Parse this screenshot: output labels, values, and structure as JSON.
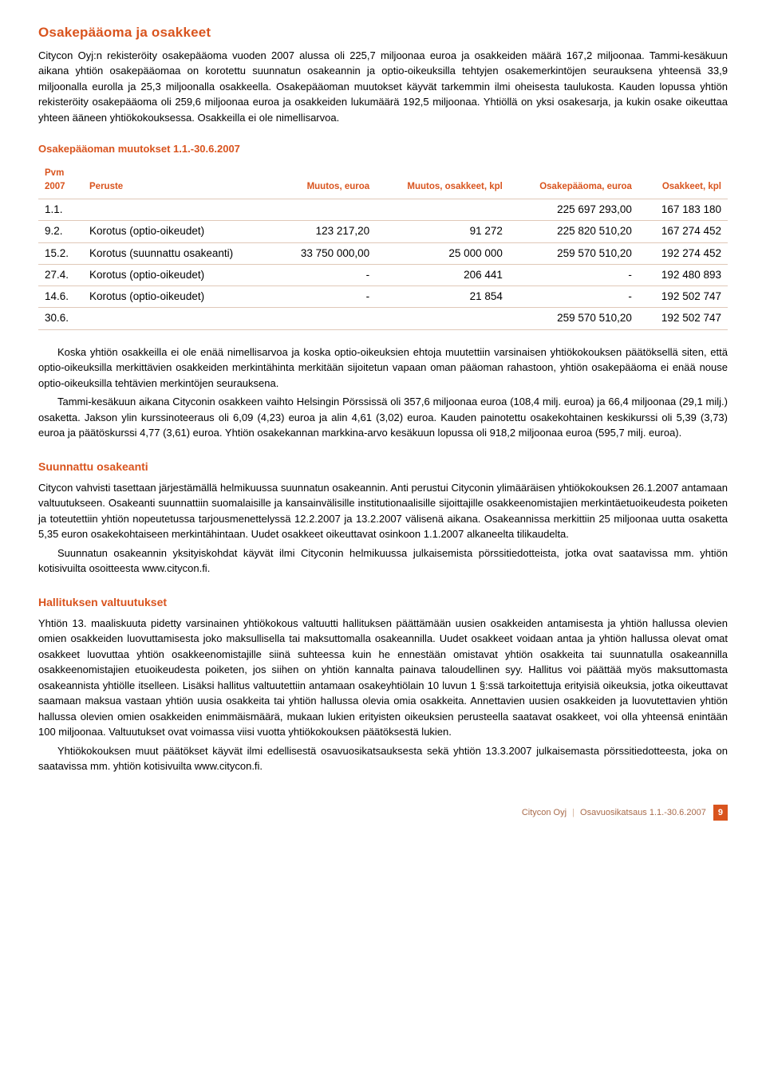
{
  "colors": {
    "accent": "#d9541e",
    "rule": "#e0c8b8",
    "footer_text": "#a86a4a"
  },
  "section1": {
    "title": "Osakepääoma ja osakkeet",
    "para": "Citycon Oyj:n rekisteröity osakepääoma vuoden 2007 alussa oli 225,7 miljoonaa euroa ja osakkeiden määrä 167,2 miljoonaa. Tammi-kesäkuun aikana yhtiön osakepääomaa on korotettu suunnatun osakeannin ja optio-oikeuksilla tehtyjen osakemerkintöjen seurauksena yhteensä 33,9 miljoonalla eurolla ja 25,3 miljoonalla osakkeella. Osakepääoman muutokset käyvät tarkemmin ilmi oheisesta taulukosta. Kauden lopussa yhtiön rekisteröity osakepääoma oli 259,6 miljoonaa euroa ja osakkeiden lukumäärä 192,5 miljoonaa. Yhtiöllä on yksi osakesarja, ja kukin osake oikeuttaa yhteen ääneen yhtiökokouksessa. Osakkeilla ei ole nimellisarvoa."
  },
  "table": {
    "title": "Osakepääoman muutokset 1.1.-30.6.2007",
    "columns": [
      "Pvm 2007",
      "Peruste",
      "Muutos, euroa",
      "Muutos, osakkeet, kpl",
      "Osakepääoma, euroa",
      "Osakkeet, kpl"
    ],
    "rows": [
      [
        "1.1.",
        "",
        "",
        "",
        "225 697 293,00",
        "167 183 180"
      ],
      [
        "9.2.",
        "Korotus (optio-oikeudet)",
        "123 217,20",
        "91 272",
        "225 820 510,20",
        "167 274 452"
      ],
      [
        "15.2.",
        "Korotus (suunnattu osakeanti)",
        "33 750 000,00",
        "25 000 000",
        "259 570 510,20",
        "192 274 452"
      ],
      [
        "27.4.",
        "Korotus (optio-oikeudet)",
        "-",
        "206 441",
        "-",
        "192 480 893"
      ],
      [
        "14.6.",
        "Korotus (optio-oikeudet)",
        "-",
        "21 854",
        "-",
        "192 502 747"
      ],
      [
        "30.6.",
        "",
        "",
        "",
        "259 570 510,20",
        "192 502 747"
      ]
    ]
  },
  "after_table": {
    "p1": "Koska yhtiön osakkeilla ei ole enää nimellisarvoa ja koska optio-oikeuksien ehtoja muutettiin varsinaisen yhtiökokouksen päätöksellä siten, että optio-oikeuksilla merkittävien osakkeiden merkintähinta merkitään sijoitetun vapaan oman pääoman rahastoon, yhtiön osakepääoma ei enää nouse optio-oikeuksilla tehtävien merkintöjen seurauksena.",
    "p2": "Tammi-kesäkuun aikana Cityconin osakkeen vaihto Helsingin Pörssissä oli 357,6 miljoonaa euroa (108,4 milj. euroa) ja 66,4 miljoonaa (29,1 milj.) osaketta. Jakson ylin kurssinoteeraus oli 6,09 (4,23) euroa ja alin 4,61 (3,02) euroa. Kauden painotettu osakekohtainen keskikurssi oli 5,39 (3,73) euroa ja päätöskurssi 4,77 (3,61) euroa. Yhtiön osakekannan markkina-arvo kesäkuun lopussa oli 918,2 miljoonaa euroa (595,7 milj. euroa)."
  },
  "section2": {
    "title": "Suunnattu osakeanti",
    "p1": "Citycon vahvisti tasettaan järjestämällä helmikuussa suunnatun osakeannin. Anti perustui Cityconin ylimääräisen yhtiökokouksen 26.1.2007 antamaan valtuutukseen. Osakeanti suunnattiin suomalaisille ja kansainvälisille institutionaalisille sijoittajille osakkeenomistajien merkintäetuoikeudesta poiketen ja toteutettiin yhtiön nopeutetussa tarjousmenettelyssä 12.2.2007 ja 13.2.2007 välisenä aikana. Osakeannissa merkittiin 25 miljoonaa uutta osaketta 5,35 euron osakekohtaiseen merkintähintaan. Uudet osakkeet oikeuttavat osinkoon 1.1.2007 alkaneelta tilikaudelta.",
    "p2": "Suunnatun osakeannin yksityiskohdat käyvät ilmi Cityconin helmikuussa julkaisemista pörssitiedotteista, jotka ovat saatavissa mm. yhtiön kotisivuilta osoitteesta www.citycon.fi."
  },
  "section3": {
    "title": "Hallituksen valtuutukset",
    "p1": "Yhtiön 13. maaliskuuta pidetty varsinainen yhtiökokous valtuutti hallituksen päättämään uusien osakkeiden antamisesta ja yhtiön hallussa olevien omien osakkeiden luovuttamisesta joko maksullisella tai maksuttomalla osakeannilla. Uudet osakkeet voidaan antaa ja yhtiön hallussa olevat omat osakkeet luovuttaa yhtiön osakkeenomistajille siinä suhteessa kuin he ennestään omistavat yhtiön osakkeita tai suunnatulla osakeannilla osakkeenomistajien etuoikeudesta poiketen, jos siihen on yhtiön kannalta painava taloudellinen syy. Hallitus voi päättää myös maksuttomasta osakeannista yhtiölle itselleen. Lisäksi hallitus valtuutettiin antamaan osakeyhtiölain 10 luvun 1 §:ssä tarkoitettuja erityisiä oikeuksia, jotka oikeuttavat saamaan maksua vastaan yhtiön uusia osakkeita tai yhtiön hallussa olevia omia osakkeita. Annettavien uusien osakkeiden ja luovutettavien yhtiön hallussa olevien omien osakkeiden enimmäismäärä, mukaan lukien erityisten oikeuksien perusteella saatavat osakkeet, voi olla yhteensä enintään 100 miljoonaa. Valtuutukset ovat voimassa viisi vuotta yhtiökokouksen päätöksestä lukien.",
    "p2": "Yhtiökokouksen muut päätökset käyvät ilmi edellisestä osavuosikatsauksesta sekä yhtiön 13.3.2007 julkaisemasta pörssitiedotteesta, joka on saatavissa mm. yhtiön kotisivuilta www.citycon.fi."
  },
  "footer": {
    "company": "Citycon Oyj",
    "doc": "Osavuosikatsaus 1.1.-30.6.2007",
    "page": "9"
  }
}
